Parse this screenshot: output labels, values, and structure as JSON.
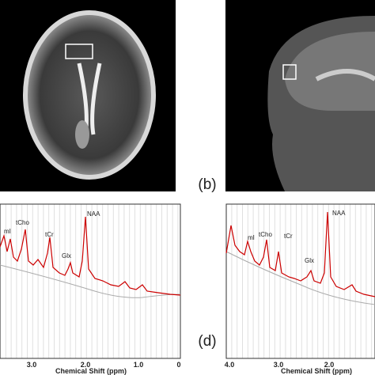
{
  "panels": [
    {
      "label": null
    },
    {
      "label": "(b)"
    },
    {
      "label": null,
      "peaks": [
        "mI",
        "tCho",
        "tCr",
        "Glx",
        "NAA"
      ],
      "x_tick_labels": [
        "3.0",
        "2.0",
        "1.0",
        "0"
      ],
      "x_axis_label": "Chemical Shift (ppm)"
    },
    {
      "label": "(d)",
      "peaks": [
        "mI",
        "tCho",
        "tCr",
        "Glx",
        "NAA"
      ],
      "x_tick_labels": [
        "4.0",
        "3.0",
        "2.0"
      ],
      "x_axis_label": "Chemical Shift (ppm)"
    }
  ]
}
